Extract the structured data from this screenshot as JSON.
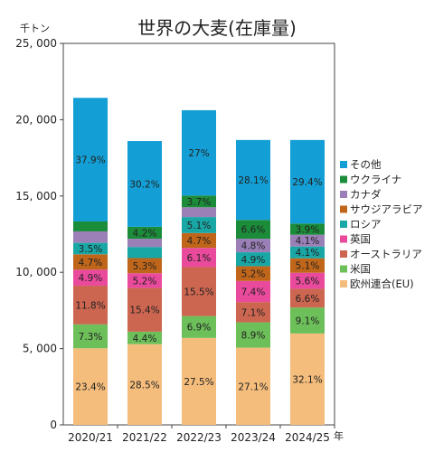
{
  "chart_data": {
    "type": "bar",
    "stacked": true,
    "title": "世界の大麦(在庫量)",
    "y_unit": "千トン",
    "x_unit": "年",
    "ylim": [
      0,
      25000
    ],
    "y_ticks": [
      0,
      5000,
      10000,
      15000,
      20000,
      25000
    ],
    "y_tick_labels": [
      "0",
      "5, 000",
      "10, 000",
      "15, 000",
      "20, 000",
      "25, 000"
    ],
    "grid": false,
    "legend_position": "right",
    "categories": [
      "2020/21",
      "2021/22",
      "2022/23",
      "2023/24",
      "2024/25"
    ],
    "series": [
      {
        "name": "欧州連合(EU)",
        "color": "#f5bd7c",
        "values": [
          5020,
          5290,
          5700,
          5060,
          5990
        ],
        "labels": [
          "23.4%",
          "28.5%",
          "27.5%",
          "27.1%",
          "32.1%"
        ]
      },
      {
        "name": "米国",
        "color": "#6dbf5a",
        "values": [
          1570,
          820,
          1430,
          1660,
          1700
        ],
        "labels": [
          "7.3%",
          "4.4%",
          "6.9%",
          "8.9%",
          "9.1%"
        ]
      },
      {
        "name": "オーストラリア",
        "color": "#cc6650",
        "values": [
          2530,
          2860,
          3210,
          1330,
          1230
        ],
        "labels": [
          "11.8%",
          "15.4%",
          "15.5%",
          "7.1%",
          "6.6%"
        ]
      },
      {
        "name": "英国",
        "color": "#e94a9c",
        "values": [
          1050,
          970,
          1260,
          1380,
          1050
        ],
        "labels": [
          "4.9%",
          "5.2%",
          "6.1%",
          "7.4%",
          "5.6%"
        ]
      },
      {
        "name": "サウジアラビア",
        "color": "#c0661a",
        "values": [
          1010,
          990,
          970,
          970,
          950
        ],
        "labels": [
          "4.7%",
          "5.3%",
          "4.7%",
          "5.2%",
          "5.1%"
        ]
      },
      {
        "name": "ロシア",
        "color": "#19a7a6",
        "values": [
          750,
          730,
          1050,
          910,
          770
        ],
        "labels": [
          "3.5%",
          "",
          "5.1%",
          "4.9%",
          "4.1%"
        ]
      },
      {
        "name": "カナダ",
        "color": "#9b80b8",
        "values": [
          750,
          540,
          640,
          890,
          770
        ],
        "labels": [
          "",
          "",
          "",
          "4.8%",
          "4.1%"
        ]
      },
      {
        "name": "ウクライナ",
        "color": "#1b8c3a",
        "values": [
          650,
          780,
          770,
          1230,
          730
        ],
        "labels": [
          "",
          "4.2%",
          "3.7%",
          "6.6%",
          "3.9%"
        ]
      },
      {
        "name": "その他",
        "color": "#139fd5",
        "values": [
          8100,
          5620,
          5590,
          5240,
          5480
        ],
        "labels": [
          "37.9%",
          "30.2%",
          "27%",
          "28.1%",
          "29.4%"
        ]
      }
    ],
    "legend_order": [
      "その他",
      "ウクライナ",
      "カナダ",
      "サウジアラビア",
      "ロシア",
      "英国",
      "オーストラリア",
      "米国",
      "欧州連合(EU)"
    ]
  }
}
